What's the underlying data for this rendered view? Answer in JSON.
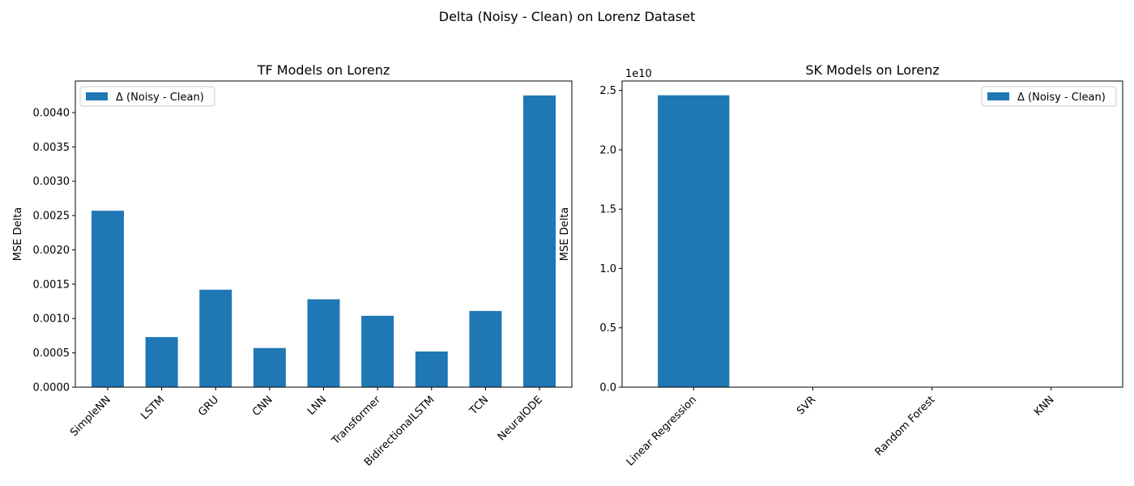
{
  "figure": {
    "suptitle": "Delta (Noisy - Clean) on Lorenz Dataset",
    "bar_color": "#1f77b4"
  },
  "chart_data": [
    {
      "type": "bar",
      "title": "TF Models on Lorenz",
      "xlabel": "",
      "ylabel": "MSE Delta",
      "categories": [
        "SimpleNN",
        "LSTM",
        "GRU",
        "CNN",
        "LNN",
        "Transformer",
        "BidirectionalLSTM",
        "TCN",
        "NeuralODE"
      ],
      "series": [
        {
          "name": "Δ (Noisy - Clean)",
          "values": [
            0.00257,
            0.00073,
            0.00142,
            0.00057,
            0.00128,
            0.00104,
            0.00052,
            0.00111,
            0.00425
          ]
        }
      ],
      "ylim": [
        0,
        0.00446
      ],
      "yticks": [
        "0.0000",
        "0.0005",
        "0.0010",
        "0.0015",
        "0.0020",
        "0.0025",
        "0.0030",
        "0.0035",
        "0.0040"
      ],
      "ytick_values": [
        0,
        0.0005,
        0.001,
        0.0015,
        0.002,
        0.0025,
        0.003,
        0.0035,
        0.004
      ],
      "legend_position": "upper left",
      "grid": false
    },
    {
      "type": "bar",
      "title": "SK Models on Lorenz",
      "xlabel": "",
      "ylabel": "MSE Delta",
      "y_offset_text": "1e10",
      "categories": [
        "Linear Regression",
        "SVR",
        "Random Forest",
        "KNN"
      ],
      "series": [
        {
          "name": "Δ (Noisy - Clean)",
          "values": [
            24600000000,
            0,
            0,
            0
          ]
        }
      ],
      "ylim": [
        0,
        25800000000
      ],
      "yticks": [
        "0.0",
        "0.5",
        "1.0",
        "1.5",
        "2.0",
        "2.5"
      ],
      "ytick_values": [
        0,
        5000000000,
        10000000000,
        15000000000,
        20000000000,
        25000000000
      ],
      "legend_position": "upper right",
      "grid": false
    }
  ]
}
